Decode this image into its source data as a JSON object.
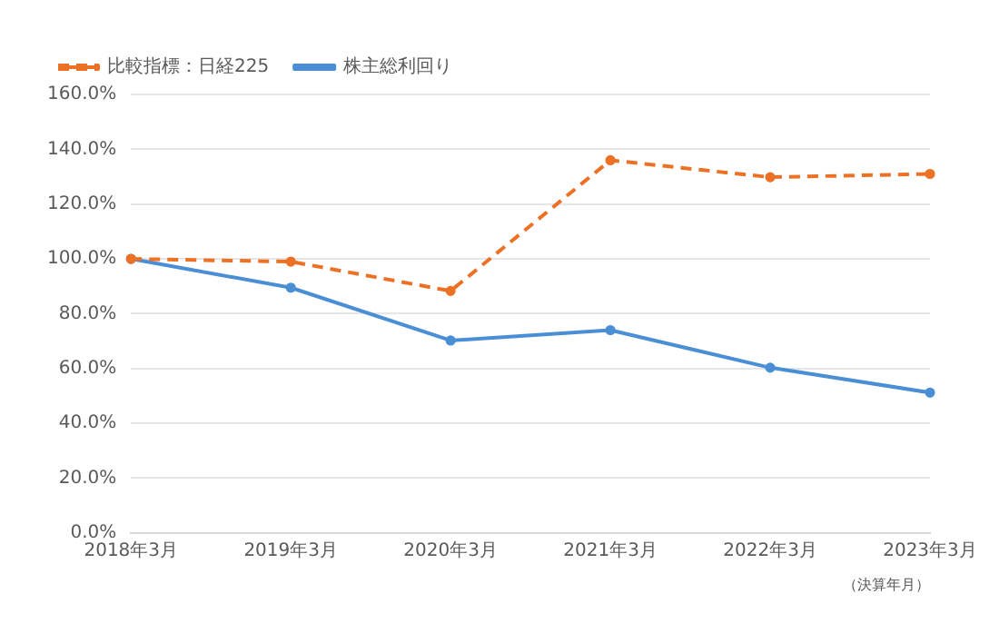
{
  "chart_data": {
    "type": "line",
    "categories": [
      "2018年3月",
      "2019年3月",
      "2020年3月",
      "2021年3月",
      "2022年3月",
      "2023年3月"
    ],
    "series": [
      {
        "name": "株主総利回り",
        "color": "#4a8fd6",
        "values": [
          100,
          89.5,
          70.2,
          74,
          60.3,
          51.2
        ],
        "line_style": "solid"
      },
      {
        "name": "比較指標：日経225",
        "color": "#ed7124",
        "values": [
          100,
          99,
          88.3,
          136,
          129.8,
          131
        ],
        "line_style": "dashed"
      }
    ],
    "xlabel": "（決算年月）",
    "ylim": [
      0,
      160
    ],
    "yticks": [
      {
        "value": 0,
        "label": "0.0%"
      },
      {
        "value": 20,
        "label": "20.0%"
      },
      {
        "value": 40,
        "label": "40.0%"
      },
      {
        "value": 60,
        "label": "60.0%"
      },
      {
        "value": 80,
        "label": "80.0%"
      },
      {
        "value": 100,
        "label": "100.0%"
      },
      {
        "value": 120,
        "label": "120.0%"
      },
      {
        "value": 140,
        "label": "140.0%"
      },
      {
        "value": 160,
        "label": "160.0%"
      }
    ],
    "grid": "y",
    "legend": "top left",
    "marker": "circle"
  }
}
